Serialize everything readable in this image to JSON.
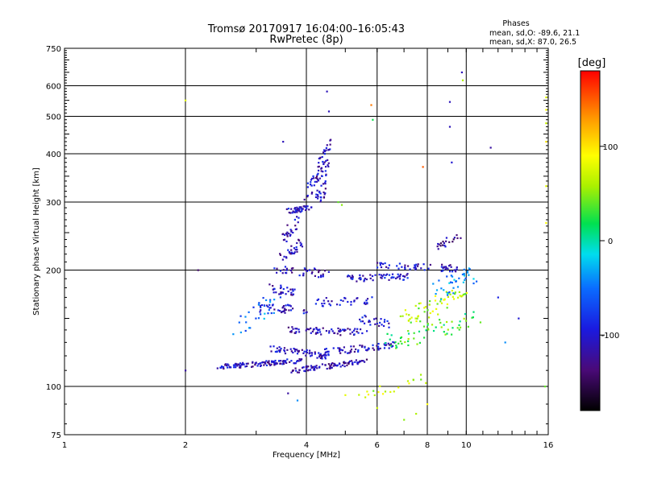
{
  "header": {
    "title": "Tromsø 20170917 16:04:00–16:05:43",
    "subtitle": "RwPretec (8p)",
    "phases_heading": "Phases",
    "phases_o": "mean, sd,O: -89.6, 21.1",
    "phases_x": "mean, sd,X: 87.0, 26.5"
  },
  "chart_data": {
    "type": "scatter",
    "title": "Tromsø 20170917 16:04:00–16:05:43",
    "subtitle": "RwPretec (8p)",
    "xlabel": "Frequency [MHz]",
    "ylabel": "Stationary phase Virtual Height [km]",
    "xscale": "log",
    "yscale": "log",
    "xlim": [
      1,
      16
    ],
    "ylim": [
      75,
      750
    ],
    "xticks": [
      1,
      2,
      4,
      6,
      8,
      10,
      16
    ],
    "xtick_labels": [
      "1",
      "2",
      "4",
      "6",
      "8",
      "10",
      "16"
    ],
    "yticks": [
      75,
      100,
      200,
      300,
      400,
      500,
      600,
      750
    ],
    "ytick_labels": [
      "75",
      "100",
      "200",
      "300",
      "400",
      "500",
      "600",
      "750"
    ],
    "grid": true,
    "colorbar": {
      "label": "[deg]",
      "range": [
        -180,
        180
      ],
      "ticks": [
        100,
        0,
        -100
      ],
      "tick_labels": [
        "100",
        "0",
        "-100"
      ]
    },
    "traces": [
      {
        "x": [
          2.4,
          3.9
        ],
        "y": [
          112,
          117
        ],
        "phase": -110,
        "n": 110,
        "jitter": 0.03
      },
      {
        "x": [
          3.7,
          5.6
        ],
        "y": [
          110,
          116
        ],
        "phase": -115,
        "n": 90,
        "jitter": 0.03
      },
      {
        "x": [
          3.3,
          4.5
        ],
        "y": [
          125,
          120
        ],
        "phase": -110,
        "n": 60,
        "jitter": 0.04
      },
      {
        "x": [
          4.2,
          6.6
        ],
        "y": [
          122,
          128
        ],
        "phase": -105,
        "n": 70,
        "jitter": 0.04
      },
      {
        "x": [
          3.5,
          5.6
        ],
        "y": [
          140,
          138
        ],
        "phase": -110,
        "n": 70,
        "jitter": 0.04
      },
      {
        "x": [
          5.4,
          6.4
        ],
        "y": [
          150,
          145
        ],
        "phase": -100,
        "n": 25,
        "jitter": 0.05
      },
      {
        "x": [
          3.0,
          4.0
        ],
        "y": [
          160,
          158
        ],
        "phase": -105,
        "n": 40,
        "jitter": 0.05
      },
      {
        "x": [
          4.2,
          5.8
        ],
        "y": [
          165,
          168
        ],
        "phase": -100,
        "n": 35,
        "jitter": 0.05
      },
      {
        "x": [
          3.2,
          3.8
        ],
        "y": [
          180,
          175
        ],
        "phase": -110,
        "n": 30,
        "jitter": 0.05
      },
      {
        "x": [
          3.4,
          4.5
        ],
        "y": [
          200,
          196
        ],
        "phase": -110,
        "n": 40,
        "jitter": 0.05
      },
      {
        "x": [
          5.0,
          7.2
        ],
        "y": [
          190,
          192
        ],
        "phase": -100,
        "n": 60,
        "jitter": 0.04
      },
      {
        "x": [
          6.0,
          9.5
        ],
        "y": [
          205,
          202
        ],
        "phase": -105,
        "n": 55,
        "jitter": 0.04
      },
      {
        "x": [
          3.5,
          3.9
        ],
        "y": [
          215,
          235
        ],
        "phase": -110,
        "n": 30,
        "jitter": 0.05
      },
      {
        "x": [
          3.5,
          3.8
        ],
        "y": [
          240,
          270
        ],
        "phase": -110,
        "n": 25,
        "jitter": 0.05
      },
      {
        "x": [
          3.6,
          4.1
        ],
        "y": [
          285,
          290
        ],
        "phase": -105,
        "n": 40,
        "jitter": 0.03
      },
      {
        "x": [
          4.3,
          4.5
        ],
        "y": [
          300,
          440
        ],
        "phase": -110,
        "n": 60,
        "jitter": 0.06
      },
      {
        "x": [
          4.0,
          4.4
        ],
        "y": [
          310,
          380
        ],
        "phase": -110,
        "n": 30,
        "jitter": 0.05
      },
      {
        "x": [
          7.0,
          10.0
        ],
        "y": [
          150,
          175
        ],
        "phase": 60,
        "n": 60,
        "jitter": 0.09
      },
      {
        "x": [
          6.5,
          10.5
        ],
        "y": [
          130,
          150
        ],
        "phase": 30,
        "n": 60,
        "jitter": 0.1
      },
      {
        "x": [
          8.5,
          10.5
        ],
        "y": [
          175,
          200
        ],
        "phase": -40,
        "n": 40,
        "jitter": 0.1
      },
      {
        "x": [
          2.7,
          3.3
        ],
        "y": [
          140,
          165
        ],
        "phase": -50,
        "n": 30,
        "jitter": 0.1
      },
      {
        "x": [
          8.5,
          9.5
        ],
        "y": [
          230,
          245
        ],
        "phase": -120,
        "n": 20,
        "jitter": 0.05
      },
      {
        "x": [
          5.5,
          8.0
        ],
        "y": [
          95,
          105
        ],
        "phase": 70,
        "n": 20,
        "jitter": 0.06
      }
    ],
    "points": [
      {
        "x": 2.0,
        "y": 110,
        "phase": -120
      },
      {
        "x": 2.15,
        "y": 200,
        "phase": -140
      },
      {
        "x": 2.0,
        "y": 550,
        "phase": 80
      },
      {
        "x": 4.5,
        "y": 580,
        "phase": -110
      },
      {
        "x": 4.55,
        "y": 515,
        "phase": -110
      },
      {
        "x": 5.8,
        "y": 535,
        "phase": 140
      },
      {
        "x": 5.85,
        "y": 490,
        "phase": 20
      },
      {
        "x": 9.1,
        "y": 545,
        "phase": -110
      },
      {
        "x": 9.1,
        "y": 470,
        "phase": -110
      },
      {
        "x": 9.75,
        "y": 650,
        "phase": -110
      },
      {
        "x": 9.8,
        "y": 620,
        "phase": 60
      },
      {
        "x": 11.5,
        "y": 415,
        "phase": -120
      },
      {
        "x": 7.8,
        "y": 370,
        "phase": 150
      },
      {
        "x": 9.2,
        "y": 380,
        "phase": -100
      },
      {
        "x": 3.5,
        "y": 430,
        "phase": -110
      },
      {
        "x": 4.8,
        "y": 300,
        "phase": 40
      },
      {
        "x": 4.9,
        "y": 295,
        "phase": 50
      },
      {
        "x": 15.8,
        "y": 560,
        "phase": 80
      },
      {
        "x": 15.8,
        "y": 520,
        "phase": 90
      },
      {
        "x": 15.8,
        "y": 480,
        "phase": 70
      },
      {
        "x": 15.8,
        "y": 430,
        "phase": 100
      },
      {
        "x": 15.8,
        "y": 330,
        "phase": 80
      },
      {
        "x": 15.8,
        "y": 265,
        "phase": 90
      },
      {
        "x": 15.7,
        "y": 100,
        "phase": 40
      },
      {
        "x": 12.5,
        "y": 130,
        "phase": -40
      },
      {
        "x": 13.5,
        "y": 150,
        "phase": -100
      },
      {
        "x": 12.0,
        "y": 170,
        "phase": -90
      },
      {
        "x": 3.6,
        "y": 96,
        "phase": -120
      },
      {
        "x": 5.0,
        "y": 95,
        "phase": 80
      },
      {
        "x": 7.5,
        "y": 85,
        "phase": 60
      },
      {
        "x": 7.0,
        "y": 82,
        "phase": 50
      },
      {
        "x": 8.0,
        "y": 90,
        "phase": 90
      },
      {
        "x": 6.0,
        "y": 88,
        "phase": 70
      },
      {
        "x": 3.8,
        "y": 92,
        "phase": -40
      }
    ]
  }
}
